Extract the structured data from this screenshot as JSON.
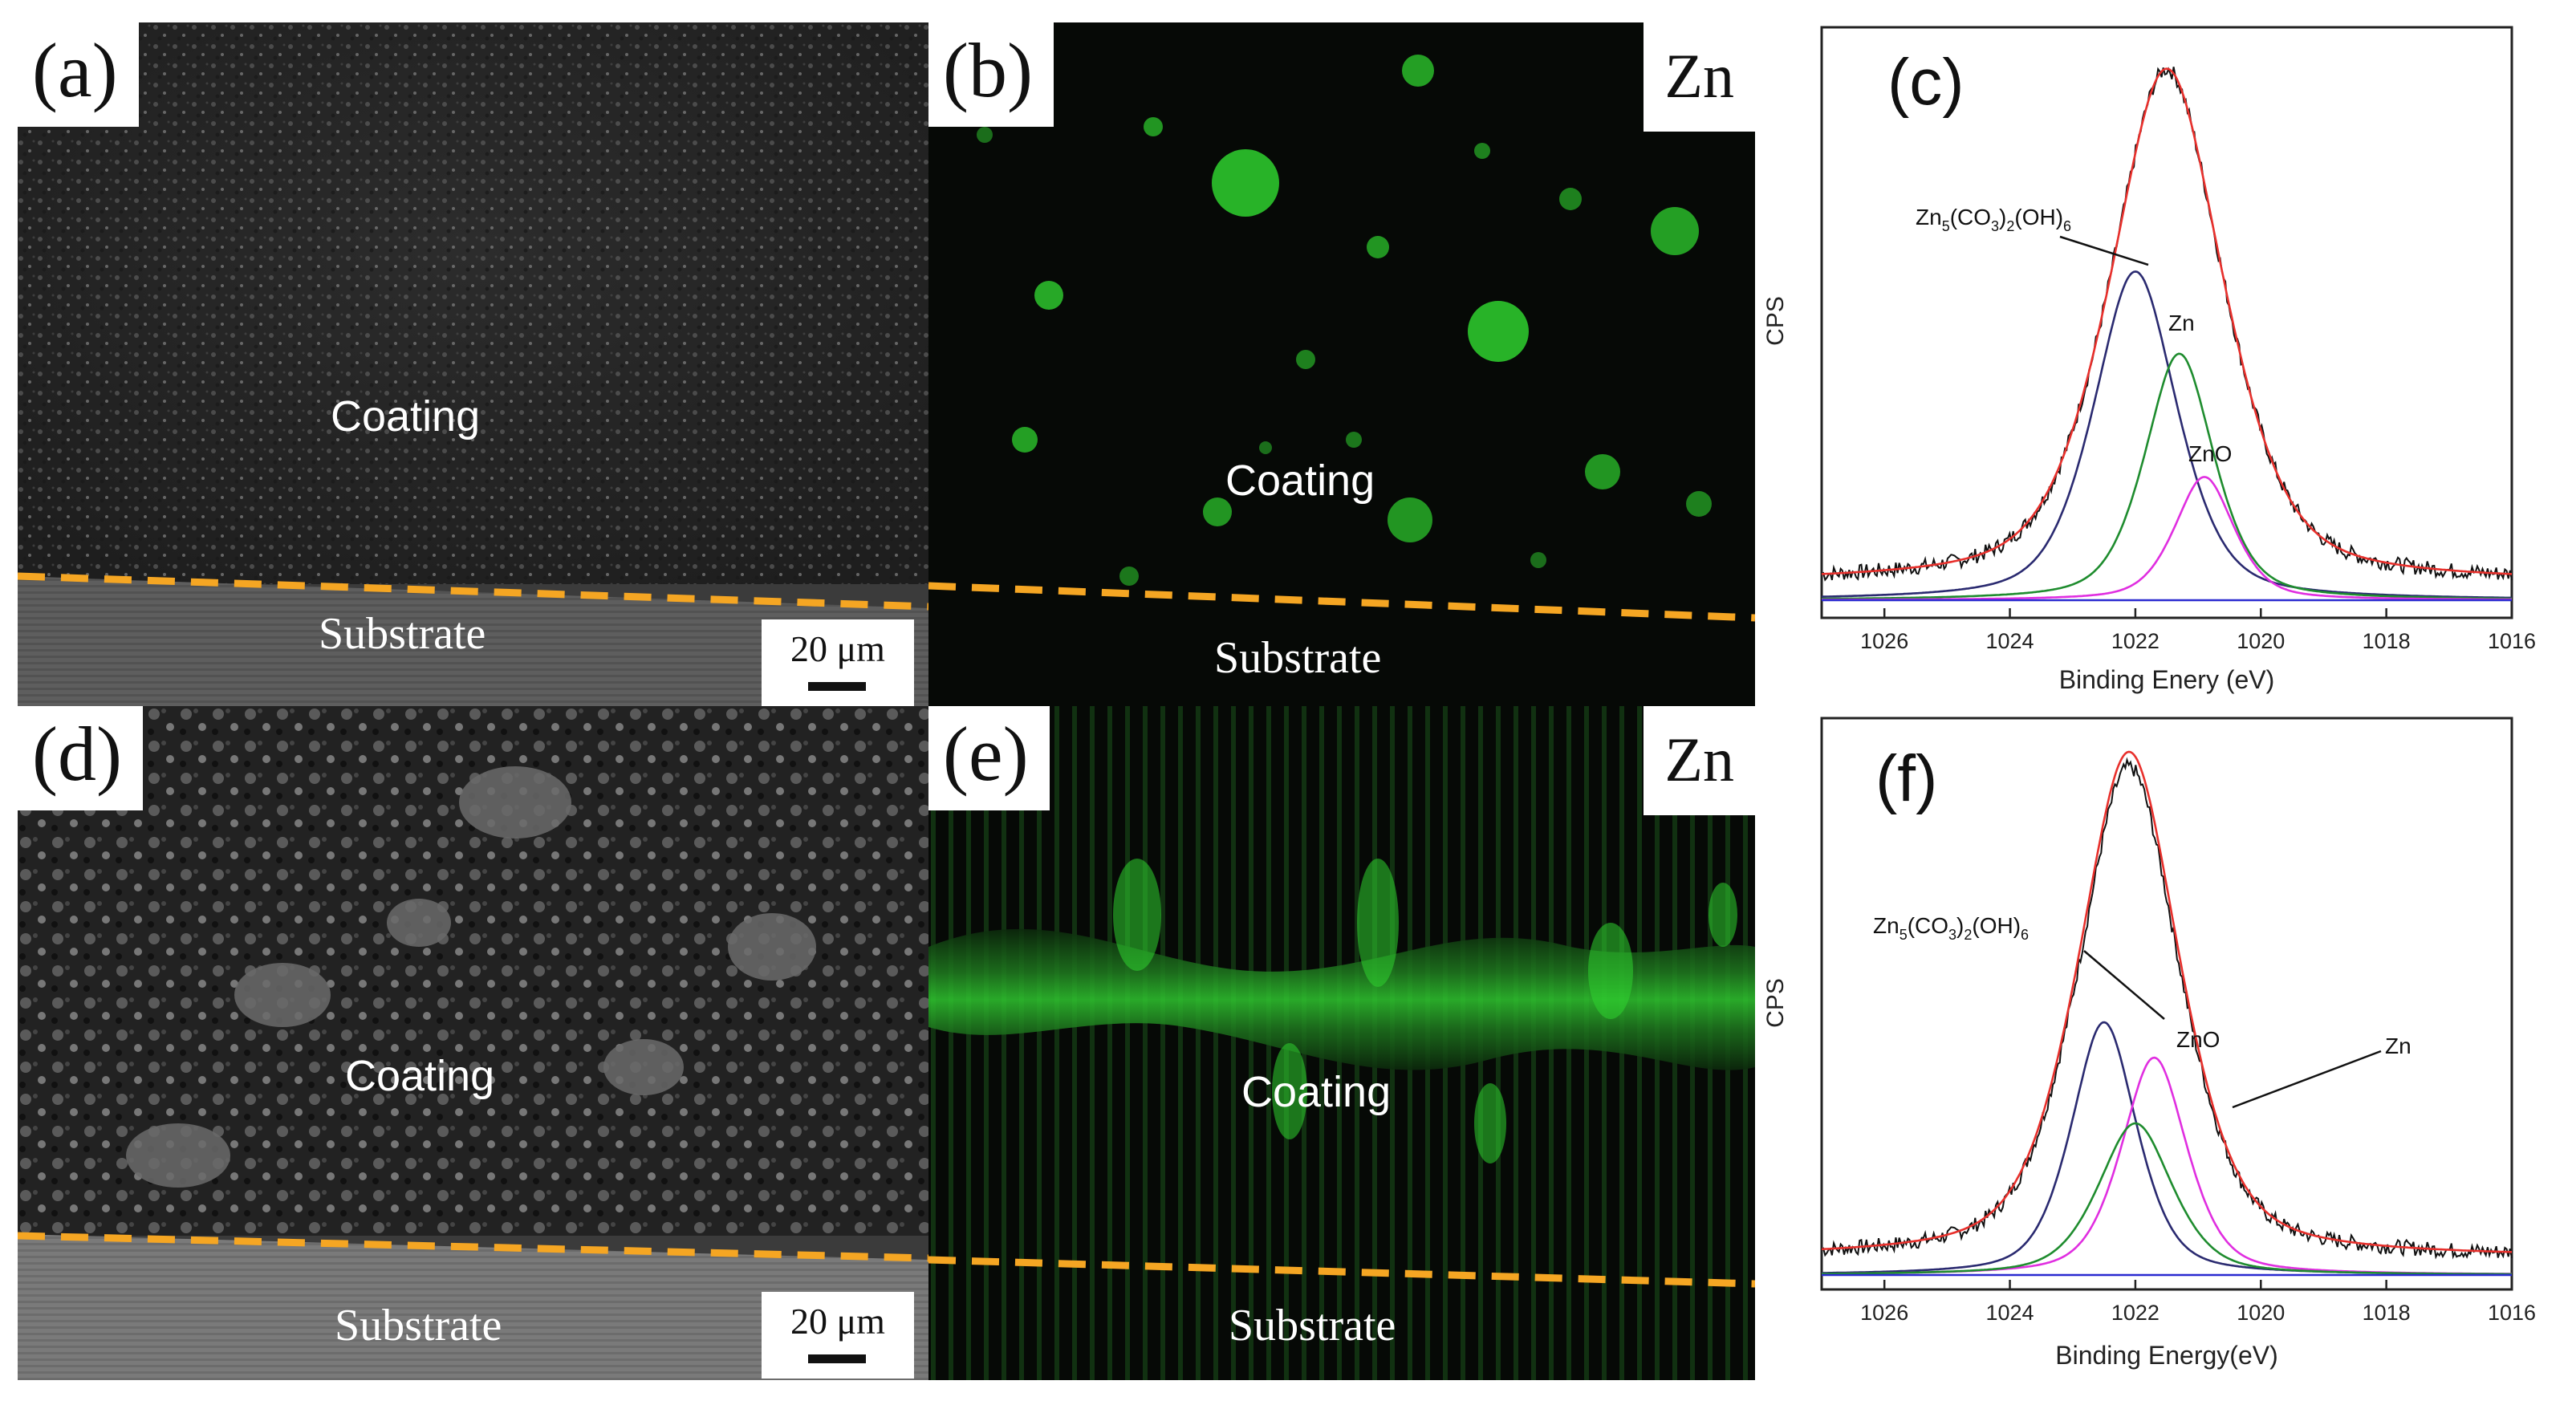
{
  "panels": {
    "a": {
      "letter": "(a)",
      "coating": "Coating",
      "substrate": "Substrate",
      "scale": "20 μm"
    },
    "b": {
      "letter": "(b)",
      "element": "Zn",
      "coating": "Coating",
      "substrate": "Substrate"
    },
    "d": {
      "letter": "(d)",
      "coating": "Coating",
      "substrate": "Substrate",
      "scale": "20 μm"
    },
    "e": {
      "letter": "(e)",
      "element": "Zn",
      "coating": "Coating",
      "substrate": "Substrate"
    }
  },
  "colors": {
    "interface_line": "#f5a623",
    "eds_green": "#2fd12f",
    "raw": "#111111",
    "envelope": "#e8302c",
    "peak_carbonate": "#2a2a70",
    "peak_zn": "#1e8c2e",
    "peak_zno": "#e02ee0",
    "baseline": "#2a2ad0"
  },
  "chart_data": [
    {
      "type": "line",
      "panel_label": "(c)",
      "xlabel": "Binding Enery (eV)",
      "ylabel": "CPS",
      "xlim": [
        1027,
        1016
      ],
      "x_reversed": true,
      "xticks": [
        1026,
        1024,
        1022,
        1020,
        1018,
        1016
      ],
      "ylim": [
        0,
        1
      ],
      "series": [
        {
          "name": "raw",
          "kind": "raw",
          "color": "#111111",
          "center": 1021.5,
          "sigma": 0.95,
          "height": 1.03
        },
        {
          "name": "envelope",
          "kind": "envelope",
          "color": "#e8302c",
          "center": 1021.5,
          "sigma": 0.95,
          "height": 1.0
        },
        {
          "name": "Zn5(CO3)2(OH)6",
          "kind": "peak",
          "color": "#2a2a70",
          "center": 1022.0,
          "sigma": 0.7,
          "height": 0.64
        },
        {
          "name": "Zn",
          "kind": "peak",
          "color": "#1e8c2e",
          "center": 1021.3,
          "sigma": 0.58,
          "height": 0.48
        },
        {
          "name": "ZnO",
          "kind": "peak",
          "color": "#e02ee0",
          "center": 1020.9,
          "sigma": 0.5,
          "height": 0.24
        },
        {
          "name": "baseline",
          "kind": "baseline",
          "color": "#2a2ad0"
        }
      ],
      "annotations": [
        {
          "text_main": "Zn",
          "sub1": "5",
          "mid1": "(CO",
          "sub2": "3",
          "mid2": ")",
          "sub3": "2",
          "mid3": "(OH)",
          "sub4": "6"
        },
        {
          "text": "Zn"
        },
        {
          "text": "ZnO"
        }
      ]
    },
    {
      "type": "line",
      "panel_label": "(f)",
      "xlabel": "Binding Energy(eV)",
      "ylabel": "CPS",
      "xlim": [
        1027,
        1016
      ],
      "x_reversed": true,
      "xticks": [
        1026,
        1024,
        1022,
        1020,
        1018,
        1016
      ],
      "ylim": [
        0,
        1
      ],
      "series": [
        {
          "name": "raw",
          "kind": "raw",
          "color": "#111111",
          "center": 1022.1,
          "sigma": 0.85,
          "height": 1.0
        },
        {
          "name": "envelope",
          "kind": "envelope",
          "color": "#e8302c",
          "center": 1022.1,
          "sigma": 0.85,
          "height": 1.0
        },
        {
          "name": "Zn5(CO3)2(OH)6",
          "kind": "peak",
          "color": "#2a2a70",
          "center": 1022.5,
          "sigma": 0.55,
          "height": 0.5
        },
        {
          "name": "ZnO",
          "kind": "peak",
          "color": "#e02ee0",
          "center": 1021.7,
          "sigma": 0.55,
          "height": 0.43
        },
        {
          "name": "Zn",
          "kind": "peak",
          "color": "#1e8c2e",
          "center": 1022.0,
          "sigma": 0.62,
          "height": 0.3
        },
        {
          "name": "baseline",
          "kind": "baseline",
          "color": "#2a2ad0"
        }
      ],
      "annotations": [
        {
          "text_main": "Zn",
          "sub1": "5",
          "mid1": "(CO",
          "sub2": "3",
          "mid2": ")",
          "sub3": "2",
          "mid3": "(OH)",
          "sub4": "6"
        },
        {
          "text": "ZnO"
        },
        {
          "text": "Zn"
        }
      ]
    }
  ]
}
